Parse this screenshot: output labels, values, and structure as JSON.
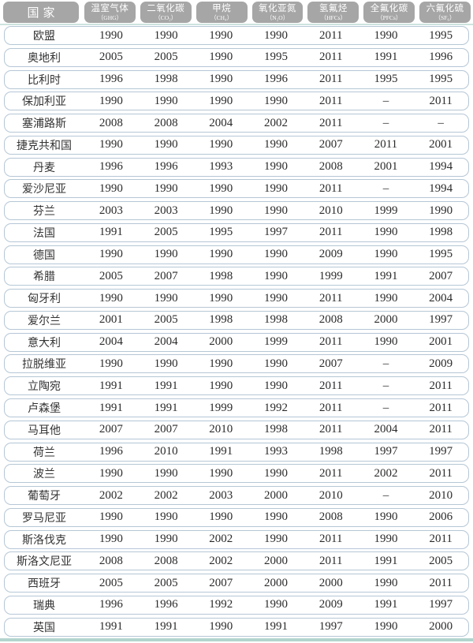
{
  "colors": {
    "header_box_bg": "#a6a6a6",
    "header_text": "#ffffff",
    "row_border": "#b5c7d6",
    "header_rule": "#cde4de",
    "bottom_bar": "#b3d5ce",
    "text": "#2b2b2b"
  },
  "missing_value_glyph": "–",
  "chart_data": {
    "type": "table",
    "country_header": "国家",
    "columns": [
      {
        "label": "温室气体",
        "sub": "（GHG）"
      },
      {
        "label": "二氧化碳",
        "sub": "（CO₂）"
      },
      {
        "label": "甲烷",
        "sub": "（CH₄）"
      },
      {
        "label": "氧化亚氮",
        "sub": "（N₂O）"
      },
      {
        "label": "氢氟烃",
        "sub": "（HFCs）"
      },
      {
        "label": "全氟化碳",
        "sub": "（PFCs）"
      },
      {
        "label": "六氟化硫",
        "sub": "（SF₆）"
      }
    ],
    "rows": [
      {
        "country": "欧盟",
        "values": [
          "1990",
          "1990",
          "1990",
          "1990",
          "2011",
          "1990",
          "1995"
        ]
      },
      {
        "country": "奥地利",
        "values": [
          "2005",
          "2005",
          "1990",
          "1995",
          "2011",
          "1991",
          "1996"
        ]
      },
      {
        "country": "比利时",
        "values": [
          "1996",
          "1998",
          "1990",
          "1996",
          "2011",
          "1995",
          "1995"
        ]
      },
      {
        "country": "保加利亚",
        "values": [
          "1990",
          "1990",
          "1990",
          "1990",
          "2011",
          "–",
          "2011"
        ]
      },
      {
        "country": "塞浦路斯",
        "values": [
          "2008",
          "2008",
          "2004",
          "2002",
          "2011",
          "–",
          "–"
        ]
      },
      {
        "country": "捷克共和国",
        "values": [
          "1990",
          "1990",
          "1990",
          "1990",
          "2007",
          "2011",
          "2001"
        ]
      },
      {
        "country": "丹麦",
        "values": [
          "1996",
          "1996",
          "1993",
          "1990",
          "2008",
          "2001",
          "1994"
        ]
      },
      {
        "country": "爱沙尼亚",
        "values": [
          "1990",
          "1990",
          "1990",
          "1990",
          "2011",
          "–",
          "1994"
        ]
      },
      {
        "country": "芬兰",
        "values": [
          "2003",
          "2003",
          "1990",
          "1990",
          "2010",
          "1999",
          "1990"
        ]
      },
      {
        "country": "法国",
        "values": [
          "1991",
          "2005",
          "1995",
          "1997",
          "2011",
          "1990",
          "1998"
        ]
      },
      {
        "country": "德国",
        "values": [
          "1990",
          "1990",
          "1990",
          "1990",
          "2009",
          "1990",
          "1995"
        ]
      },
      {
        "country": "希腊",
        "values": [
          "2005",
          "2007",
          "1998",
          "1990",
          "1999",
          "1991",
          "2007"
        ]
      },
      {
        "country": "匈牙利",
        "values": [
          "1990",
          "1990",
          "1990",
          "1990",
          "2011",
          "1990",
          "2004"
        ]
      },
      {
        "country": "爱尔兰",
        "values": [
          "2001",
          "2005",
          "1998",
          "1998",
          "2008",
          "2000",
          "1997"
        ]
      },
      {
        "country": "意大利",
        "values": [
          "2004",
          "2004",
          "2000",
          "1999",
          "2011",
          "1990",
          "2001"
        ]
      },
      {
        "country": "拉脱维亚",
        "values": [
          "1990",
          "1990",
          "1990",
          "1990",
          "2007",
          "–",
          "2009"
        ]
      },
      {
        "country": "立陶宛",
        "values": [
          "1991",
          "1991",
          "1990",
          "1990",
          "2011",
          "–",
          "2011"
        ]
      },
      {
        "country": "卢森堡",
        "values": [
          "1991",
          "1991",
          "1999",
          "1992",
          "2011",
          "–",
          "2011"
        ]
      },
      {
        "country": "马耳他",
        "values": [
          "2007",
          "2007",
          "2010",
          "1998",
          "2011",
          "2004",
          "2011"
        ]
      },
      {
        "country": "荷兰",
        "values": [
          "1996",
          "2010",
          "1991",
          "1993",
          "1998",
          "1997",
          "1997"
        ]
      },
      {
        "country": "波兰",
        "values": [
          "1990",
          "1990",
          "1990",
          "1990",
          "2011",
          "2002",
          "2011"
        ]
      },
      {
        "country": "葡萄牙",
        "values": [
          "2002",
          "2002",
          "2003",
          "2000",
          "2010",
          "–",
          "2010"
        ]
      },
      {
        "country": "罗马尼亚",
        "values": [
          "1990",
          "1990",
          "1990",
          "1990",
          "2008",
          "1990",
          "2006"
        ]
      },
      {
        "country": "斯洛伐克",
        "values": [
          "1990",
          "1990",
          "2002",
          "1990",
          "2011",
          "1990",
          "2011"
        ]
      },
      {
        "country": "斯洛文尼亚",
        "values": [
          "2008",
          "2008",
          "2002",
          "2000",
          "2011",
          "1991",
          "2005"
        ]
      },
      {
        "country": "西班牙",
        "values": [
          "2005",
          "2005",
          "2007",
          "2000",
          "2000",
          "1990",
          "2011"
        ]
      },
      {
        "country": "瑞典",
        "values": [
          "1996",
          "1996",
          "1992",
          "1990",
          "2009",
          "1991",
          "1997"
        ]
      },
      {
        "country": "英国",
        "values": [
          "1991",
          "1991",
          "1990",
          "1991",
          "1997",
          "1990",
          "2000"
        ]
      }
    ]
  }
}
